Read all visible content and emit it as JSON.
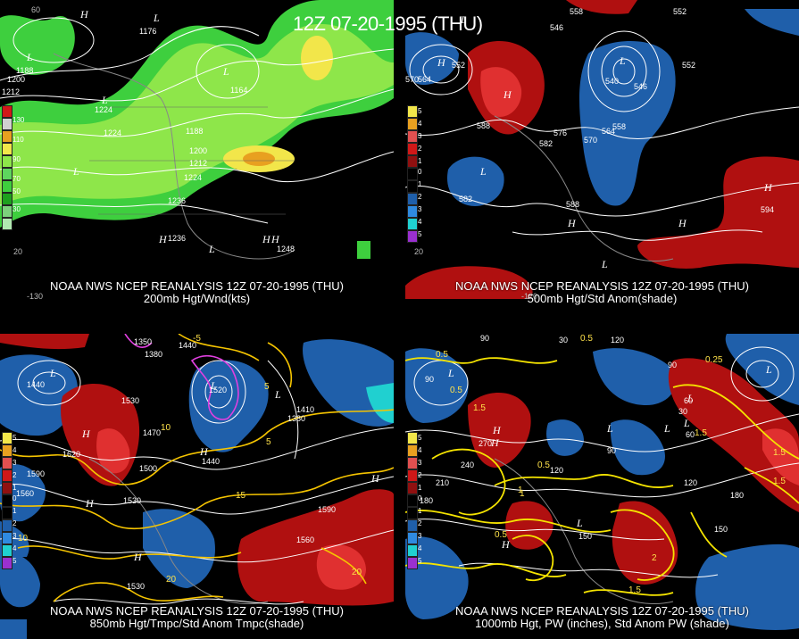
{
  "header": {
    "title": "12Z 07-20-1995 (THU)"
  },
  "panels": [
    {
      "caption_line1": "NOAA NWS NCEP REANALYSIS 12Z 07-20-1995 (THU)",
      "caption_line2": "200mb Hgt/Wnd(kts)",
      "legend": [
        "130",
        "110",
        "90",
        "70",
        "50",
        "30"
      ],
      "contour_labels": [
        "1188",
        "1200",
        "1212",
        "1224",
        "1236",
        "1176",
        "1164",
        "1224",
        "1188",
        "1200",
        "1212",
        "1224",
        "1236",
        "1248"
      ],
      "centers": [
        "H",
        "L",
        "L",
        "L",
        "L",
        "L",
        "H",
        "H",
        "L",
        "H"
      ]
    },
    {
      "caption_line1": "NOAA NWS NCEP REANALYSIS 12Z 07-20-1995 (THU)",
      "caption_line2": "500mb Hgt/Std Anom(shade)",
      "legend": [
        "5",
        "4",
        "3",
        "2",
        "1",
        "0",
        "1",
        "2",
        "3",
        "4",
        "5"
      ],
      "contour_labels": [
        "558",
        "552",
        "546",
        "570",
        "564",
        "552",
        "588",
        "582",
        "576",
        "570",
        "564",
        "558",
        "546",
        "540",
        "552",
        "582",
        "588",
        "594"
      ],
      "centers": [
        "H",
        "L",
        "L",
        "H",
        "L",
        "H",
        "H",
        "H",
        "L"
      ]
    },
    {
      "caption_line1": "NOAA NWS NCEP REANALYSIS 12Z 07-20-1995 (THU)",
      "caption_line2": "850mb Hgt/Tmpc/Std Anom Tmpc(shade)",
      "legend": [
        "5",
        "4",
        "3",
        "2",
        "1",
        "0",
        "1",
        "2",
        "3",
        "4",
        "5"
      ],
      "contour_labels": [
        "1440",
        "1350",
        "1380",
        "1440",
        "1530",
        "1470",
        "1620",
        "1590",
        "1500",
        "1440",
        "1560",
        "1530",
        "1590",
        "1560",
        "1530",
        "1410",
        "1380",
        "1520"
      ],
      "temp_labels": [
        "-5",
        "5",
        "10",
        "15",
        "20",
        "10",
        "20",
        "5"
      ],
      "centers": [
        "L",
        "H",
        "L",
        "L",
        "H",
        "H",
        "H",
        "H"
      ]
    },
    {
      "caption_line1": "NOAA NWS NCEP REANALYSIS 12Z 07-20-1995 (THU)",
      "caption_line2": "1000mb Hgt, PW (inches), Std Anom PW (shade)",
      "legend": [
        "5",
        "4",
        "3",
        "2",
        "1",
        "0",
        "1",
        "2",
        "3",
        "4",
        "5"
      ],
      "contour_labels": [
        "90",
        "30",
        "120",
        "90",
        "60",
        "30",
        "270",
        "240",
        "210",
        "180",
        "120",
        "150",
        "180",
        "150",
        "90",
        "60",
        "90",
        "120"
      ],
      "pw_labels": [
        "0.5",
        "0.5",
        "1.5",
        "0.5",
        "1",
        "0.5",
        "1.5",
        "2",
        "1.5",
        "1.5",
        "0.25",
        "0.5",
        "1",
        "1.5"
      ],
      "centers": [
        "L",
        "L",
        "H",
        "L",
        "L",
        "L",
        "L",
        "H",
        "H",
        "L"
      ]
    }
  ],
  "coords": [
    "60",
    "-130",
    "-120",
    "20",
    "-130",
    "20",
    "-120",
    "60"
  ],
  "colors": {
    "wind_light": "#8ee64a",
    "wind_mid": "#3ecf3e",
    "wind_dark": "#1ea01e",
    "wind_yellow": "#f2e64a",
    "wind_orange": "#e8a020",
    "anom_pos": "#b01010",
    "anom_pos2": "#e03030",
    "anom_neg": "#1f5faa",
    "anom_neg2": "#2f8ae0",
    "yellow_contour": "#f5c400",
    "magenta": "#e040e0"
  }
}
